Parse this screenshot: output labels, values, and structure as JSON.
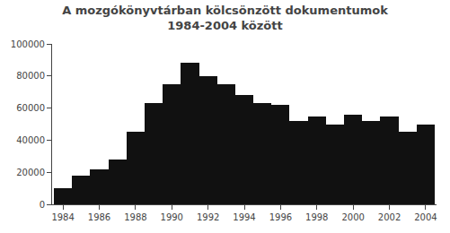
{
  "chart_data": {
    "type": "bar",
    "title": "A mozgókönyvtárban kölcsönzött dokumentumok",
    "subtitle": "1984-2004 között",
    "x": [
      1984,
      1985,
      1986,
      1987,
      1988,
      1989,
      1990,
      1991,
      1992,
      1993,
      1994,
      1995,
      1996,
      1997,
      1998,
      1999,
      2000,
      2001,
      2002,
      2003,
      2004
    ],
    "values": [
      10000,
      18000,
      22000,
      28000,
      45000,
      63000,
      75000,
      88000,
      80000,
      75000,
      68000,
      63000,
      62000,
      52000,
      55000,
      50000,
      56000,
      52000,
      55000,
      45000,
      50000
    ],
    "color": "#111111",
    "xlim": [
      1983.4,
      2004.6
    ],
    "xticks": [
      1984,
      1986,
      1988,
      1990,
      1992,
      1994,
      1996,
      1998,
      2000,
      2002,
      2004
    ],
    "ylim": [
      0,
      100000
    ],
    "yticks": [
      0,
      20000,
      40000,
      60000,
      80000,
      100000
    ],
    "grid": false
  }
}
